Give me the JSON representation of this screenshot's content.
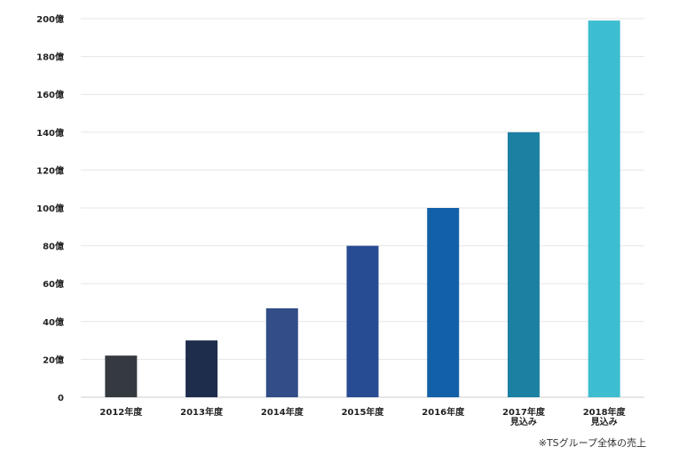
{
  "chart_data": {
    "type": "bar",
    "categories": [
      "2012年度",
      "2013年度",
      "2014年度",
      "2015年度",
      "2016年度",
      "2017年度\n見込み",
      "2018年度\n見込み"
    ],
    "values": [
      22,
      30,
      47,
      80,
      100,
      140,
      199
    ],
    "colors": [
      "#353a40",
      "#1f2d4c",
      "#324d87",
      "#284c93",
      "#1260a8",
      "#1c80a2",
      "#3dbdd0"
    ],
    "yticks": [
      "0",
      "20億",
      "40億",
      "60億",
      "80億",
      "100億",
      "120億",
      "140億",
      "160億",
      "180億",
      "200億"
    ],
    "ylim": [
      0,
      200
    ],
    "grid": true,
    "title": "",
    "xlabel": "",
    "ylabel": ""
  },
  "footnote": "※TSグループ全体の売上"
}
